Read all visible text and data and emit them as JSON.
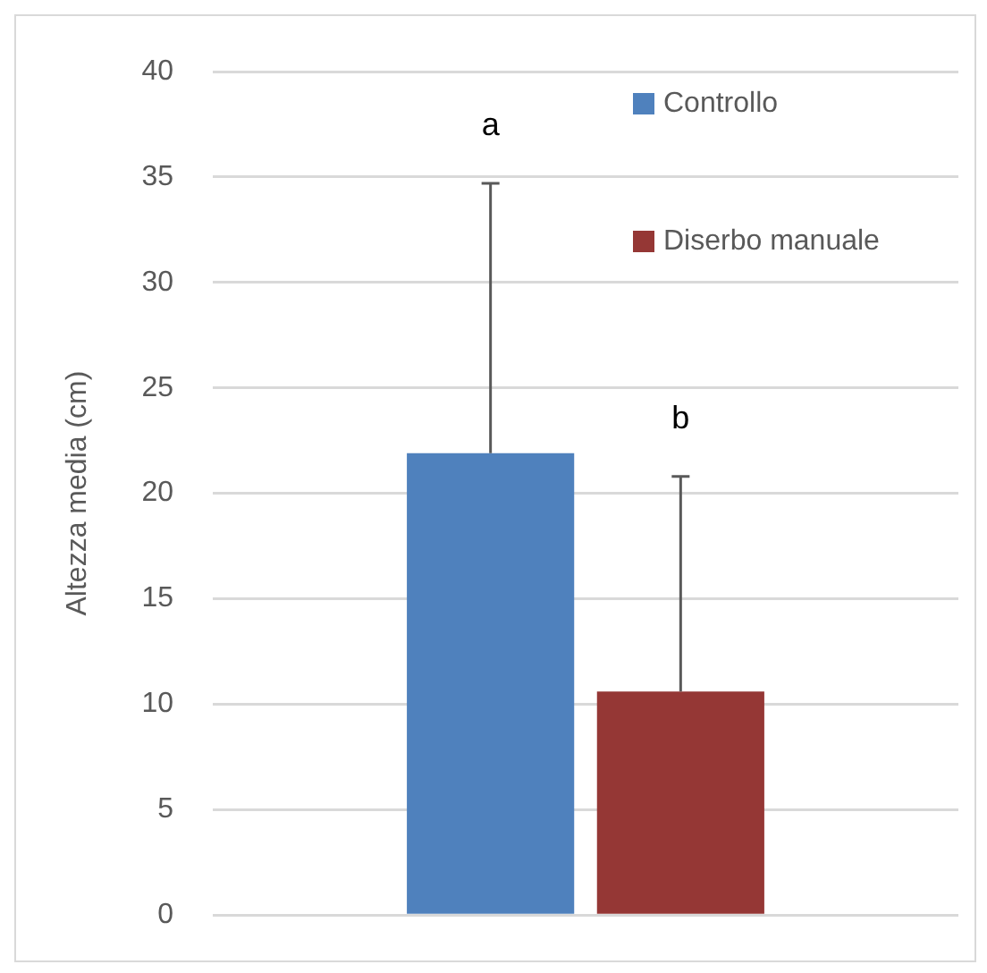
{
  "chart_data": {
    "type": "bar",
    "ylabel": "Altezza media (cm)",
    "categories": [
      null
    ],
    "series": [
      {
        "name": "Controllo",
        "color": "#4f81bd",
        "values": [
          21.9
        ],
        "errors": [
          [
            21.9,
            34.7
          ]
        ]
      },
      {
        "name": "Diserbo manuale",
        "color": "#953735",
        "values": [
          10.6
        ],
        "errors": [
          [
            10.6,
            20.8
          ]
        ]
      }
    ],
    "annotations": [
      "a",
      "b"
    ],
    "ylim": [
      0,
      40
    ],
    "yticks": [
      0,
      5,
      10,
      15,
      20,
      25,
      30,
      35,
      40
    ],
    "grid": "y",
    "legend": "top right"
  }
}
